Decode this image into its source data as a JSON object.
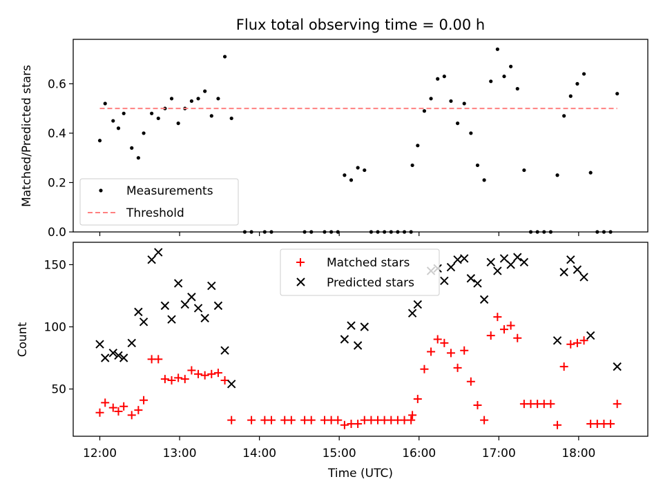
{
  "chart_data": [
    {
      "type": "scatter",
      "title": "Flux total observing time = 0.00 h",
      "ylabel": "Matched/Predicted stars",
      "xlim": [
        "11:40",
        "18:52"
      ],
      "ylim": [
        0,
        0.78
      ],
      "yticks": [
        0.0,
        0.2,
        0.4,
        0.6
      ],
      "ytick_labels": [
        "0.0",
        "0.2",
        "0.4",
        "0.6"
      ],
      "xticks": [
        "12:00",
        "13:00",
        "14:00",
        "15:00",
        "16:00",
        "17:00",
        "18:00"
      ],
      "legend": {
        "position": "lower-left",
        "entries": [
          "Measurements",
          "Threshold"
        ]
      },
      "series": [
        {
          "name": "Measurements",
          "marker": "dot",
          "color": "#000000",
          "points": [
            [
              "12:00",
              0.37
            ],
            [
              "12:04",
              0.52
            ],
            [
              "12:10",
              0.45
            ],
            [
              "12:14",
              0.42
            ],
            [
              "12:18",
              0.48
            ],
            [
              "12:24",
              0.34
            ],
            [
              "12:29",
              0.3
            ],
            [
              "12:33",
              0.4
            ],
            [
              "12:39",
              0.48
            ],
            [
              "12:44",
              0.46
            ],
            [
              "12:49",
              0.5
            ],
            [
              "12:54",
              0.54
            ],
            [
              "12:59",
              0.44
            ],
            [
              "13:04",
              0.5
            ],
            [
              "13:09",
              0.53
            ],
            [
              "13:14",
              0.54
            ],
            [
              "13:19",
              0.57
            ],
            [
              "13:24",
              0.47
            ],
            [
              "13:29",
              0.54
            ],
            [
              "13:34",
              0.71
            ],
            [
              "13:39",
              0.46
            ],
            [
              "13:49",
              0.0
            ],
            [
              "13:54",
              0.0
            ],
            [
              "14:04",
              0.0
            ],
            [
              "14:09",
              0.0
            ],
            [
              "14:34",
              0.0
            ],
            [
              "14:39",
              0.0
            ],
            [
              "14:49",
              0.0
            ],
            [
              "14:54",
              0.0
            ],
            [
              "14:59",
              0.0
            ],
            [
              "15:04",
              0.23
            ],
            [
              "15:09",
              0.21
            ],
            [
              "15:14",
              0.26
            ],
            [
              "15:19",
              0.25
            ],
            [
              "15:24",
              0.0
            ],
            [
              "15:29",
              0.0
            ],
            [
              "15:34",
              0.0
            ],
            [
              "15:39",
              0.0
            ],
            [
              "15:44",
              0.0
            ],
            [
              "15:49",
              0.0
            ],
            [
              "15:54",
              0.0
            ],
            [
              "15:55",
              0.27
            ],
            [
              "15:59",
              0.35
            ],
            [
              "16:04",
              0.49
            ],
            [
              "16:09",
              0.54
            ],
            [
              "16:14",
              0.62
            ],
            [
              "16:19",
              0.63
            ],
            [
              "16:24",
              0.53
            ],
            [
              "16:29",
              0.44
            ],
            [
              "16:34",
              0.52
            ],
            [
              "16:39",
              0.4
            ],
            [
              "16:44",
              0.27
            ],
            [
              "16:49",
              0.21
            ],
            [
              "16:54",
              0.61
            ],
            [
              "16:59",
              0.74
            ],
            [
              "17:04",
              0.63
            ],
            [
              "17:09",
              0.67
            ],
            [
              "17:14",
              0.58
            ],
            [
              "17:19",
              0.25
            ],
            [
              "17:24",
              0.0
            ],
            [
              "17:29",
              0.0
            ],
            [
              "17:34",
              0.0
            ],
            [
              "17:39",
              0.0
            ],
            [
              "17:44",
              0.23
            ],
            [
              "17:49",
              0.47
            ],
            [
              "17:54",
              0.55
            ],
            [
              "17:59",
              0.6
            ],
            [
              "18:04",
              0.64
            ],
            [
              "18:09",
              0.24
            ],
            [
              "18:14",
              0.0
            ],
            [
              "18:19",
              0.0
            ],
            [
              "18:24",
              0.0
            ],
            [
              "18:29",
              0.56
            ]
          ]
        },
        {
          "name": "Threshold",
          "marker": "dashed-line",
          "color": "#ff8080",
          "points": [
            [
              "12:00",
              0.5
            ],
            [
              "18:29",
              0.5
            ]
          ]
        }
      ]
    },
    {
      "type": "scatter",
      "ylabel": "Count",
      "xlabel": "Time (UTC)",
      "xlim": [
        "11:40",
        "18:52"
      ],
      "ylim": [
        12,
        168
      ],
      "yticks": [
        50,
        100,
        150
      ],
      "ytick_labels": [
        "50",
        "100",
        "150"
      ],
      "xticks": [
        "12:00",
        "13:00",
        "14:00",
        "15:00",
        "16:00",
        "17:00",
        "18:00"
      ],
      "legend": {
        "position": "top-center",
        "entries": [
          "Matched stars",
          "Predicted stars"
        ]
      },
      "series": [
        {
          "name": "Matched stars",
          "marker": "plus",
          "color": "#ff0000",
          "points": [
            [
              "12:00",
              31
            ],
            [
              "12:04",
              39
            ],
            [
              "12:10",
              35
            ],
            [
              "12:14",
              32
            ],
            [
              "12:18",
              36
            ],
            [
              "12:24",
              29
            ],
            [
              "12:29",
              33
            ],
            [
              "12:33",
              41
            ],
            [
              "12:39",
              74
            ],
            [
              "12:44",
              74
            ],
            [
              "12:49",
              58
            ],
            [
              "12:54",
              57
            ],
            [
              "12:59",
              59
            ],
            [
              "13:04",
              58
            ],
            [
              "13:09",
              65
            ],
            [
              "13:14",
              62
            ],
            [
              "13:19",
              61
            ],
            [
              "13:24",
              62
            ],
            [
              "13:29",
              63
            ],
            [
              "13:34",
              57
            ],
            [
              "13:39",
              25
            ],
            [
              "13:54",
              25
            ],
            [
              "14:04",
              25
            ],
            [
              "14:09",
              25
            ],
            [
              "14:19",
              25
            ],
            [
              "14:24",
              25
            ],
            [
              "14:34",
              25
            ],
            [
              "14:39",
              25
            ],
            [
              "14:49",
              25
            ],
            [
              "14:54",
              25
            ],
            [
              "14:59",
              25
            ],
            [
              "15:04",
              21
            ],
            [
              "15:09",
              22
            ],
            [
              "15:14",
              22
            ],
            [
              "15:19",
              25
            ],
            [
              "15:24",
              25
            ],
            [
              "15:29",
              25
            ],
            [
              "15:34",
              25
            ],
            [
              "15:39",
              25
            ],
            [
              "15:44",
              25
            ],
            [
              "15:49",
              25
            ],
            [
              "15:54",
              25
            ],
            [
              "15:55",
              29
            ],
            [
              "15:59",
              42
            ],
            [
              "16:04",
              66
            ],
            [
              "16:09",
              80
            ],
            [
              "16:14",
              90
            ],
            [
              "16:19",
              87
            ],
            [
              "16:24",
              79
            ],
            [
              "16:29",
              67
            ],
            [
              "16:34",
              81
            ],
            [
              "16:39",
              56
            ],
            [
              "16:44",
              37
            ],
            [
              "16:49",
              25
            ],
            [
              "16:54",
              93
            ],
            [
              "16:59",
              108
            ],
            [
              "17:04",
              98
            ],
            [
              "17:09",
              101
            ],
            [
              "17:14",
              91
            ],
            [
              "17:19",
              38
            ],
            [
              "17:24",
              38
            ],
            [
              "17:29",
              38
            ],
            [
              "17:34",
              38
            ],
            [
              "17:39",
              38
            ],
            [
              "17:44",
              21
            ],
            [
              "17:49",
              68
            ],
            [
              "17:54",
              86
            ],
            [
              "17:59",
              87
            ],
            [
              "18:04",
              89
            ],
            [
              "18:09",
              22
            ],
            [
              "18:14",
              22
            ],
            [
              "18:19",
              22
            ],
            [
              "18:24",
              22
            ],
            [
              "18:29",
              38
            ]
          ]
        },
        {
          "name": "Predicted stars",
          "marker": "x",
          "color": "#000000",
          "points": [
            [
              "12:00",
              86
            ],
            [
              "12:04",
              75
            ],
            [
              "12:10",
              79
            ],
            [
              "12:14",
              77
            ],
            [
              "12:18",
              75
            ],
            [
              "12:24",
              87
            ],
            [
              "12:29",
              112
            ],
            [
              "12:33",
              104
            ],
            [
              "12:39",
              154
            ],
            [
              "12:44",
              160
            ],
            [
              "12:49",
              117
            ],
            [
              "12:54",
              106
            ],
            [
              "12:59",
              135
            ],
            [
              "13:04",
              118
            ],
            [
              "13:09",
              124
            ],
            [
              "13:14",
              115
            ],
            [
              "13:19",
              107
            ],
            [
              "13:24",
              133
            ],
            [
              "13:29",
              117
            ],
            [
              "13:34",
              81
            ],
            [
              "13:39",
              54
            ],
            [
              "15:04",
              90
            ],
            [
              "15:09",
              101
            ],
            [
              "15:14",
              85
            ],
            [
              "15:19",
              100
            ],
            [
              "15:55",
              111
            ],
            [
              "15:59",
              118
            ],
            [
              "16:09",
              145
            ],
            [
              "16:14",
              147
            ],
            [
              "16:19",
              137
            ],
            [
              "16:24",
              148
            ],
            [
              "16:29",
              154
            ],
            [
              "16:34",
              155
            ],
            [
              "16:39",
              139
            ],
            [
              "16:44",
              135
            ],
            [
              "16:49",
              122
            ],
            [
              "16:54",
              152
            ],
            [
              "16:59",
              145
            ],
            [
              "17:04",
              155
            ],
            [
              "17:09",
              150
            ],
            [
              "17:14",
              156
            ],
            [
              "17:19",
              152
            ],
            [
              "17:44",
              89
            ],
            [
              "17:49",
              144
            ],
            [
              "17:54",
              154
            ],
            [
              "17:59",
              146
            ],
            [
              "18:04",
              140
            ],
            [
              "18:09",
              93
            ],
            [
              "18:29",
              68
            ]
          ]
        }
      ]
    }
  ]
}
